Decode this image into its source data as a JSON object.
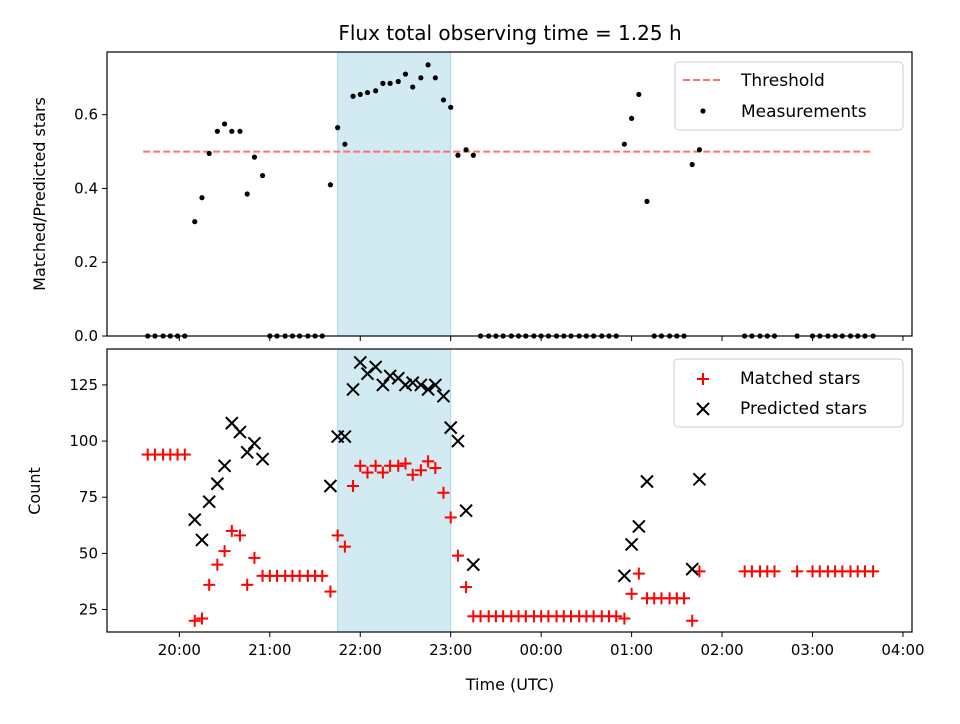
{
  "title": "Flux total observing time = 1.25 h",
  "chart_data": [
    {
      "type": "scatter",
      "ylabel": "Matched/Predicted stars",
      "xlim": [
        19.2,
        28.1
      ],
      "ylim": [
        0,
        0.77
      ],
      "yticks": [
        0.0,
        0.2,
        0.4,
        0.6
      ],
      "ytick_labels": [
        "0.0",
        "0.2",
        "0.4",
        "0.6"
      ],
      "shaded_span": {
        "x0": 21.75,
        "x1": 23.0,
        "color": "#add8e6"
      },
      "threshold": {
        "name": "Threshold",
        "y": 0.5,
        "x0": 19.6,
        "x1": 27.65,
        "color": "#ff7070"
      },
      "legend": [
        {
          "label": "Threshold",
          "kind": "dashed-line"
        },
        {
          "label": "Measurements",
          "kind": "dot"
        }
      ],
      "legend_position": "top-right",
      "series": [
        {
          "name": "Measurements",
          "color": "#000000",
          "marker": "dot",
          "x": [
            19.65,
            19.73,
            19.82,
            19.9,
            19.98,
            20.06,
            20.17,
            20.25,
            20.33,
            20.42,
            20.5,
            20.58,
            20.67,
            20.75,
            20.83,
            20.92,
            21.0,
            21.08,
            21.17,
            21.25,
            21.33,
            21.42,
            21.5,
            21.58,
            21.67,
            21.75,
            21.83,
            21.92,
            22.0,
            22.08,
            22.17,
            22.25,
            22.33,
            22.42,
            22.5,
            22.58,
            22.67,
            22.75,
            22.83,
            22.92,
            23.0,
            23.08,
            23.17,
            23.25,
            23.33,
            23.42,
            23.5,
            23.58,
            23.67,
            23.75,
            23.83,
            23.92,
            24.0,
            24.08,
            24.17,
            24.25,
            24.33,
            24.42,
            24.5,
            24.58,
            24.67,
            24.75,
            24.83,
            24.92,
            25.0,
            25.08,
            25.17,
            25.25,
            25.33,
            25.42,
            25.5,
            25.58,
            25.67,
            25.75,
            26.25,
            26.33,
            26.42,
            26.5,
            26.58,
            26.83,
            27.0,
            27.08,
            27.17,
            27.25,
            27.33,
            27.42,
            27.5,
            27.58,
            27.67
          ],
          "y": [
            0,
            0,
            0,
            0,
            0,
            0,
            0.31,
            0.375,
            0.495,
            0.555,
            0.575,
            0.555,
            0.555,
            0.385,
            0.485,
            0.435,
            0,
            0,
            0,
            0,
            0,
            0,
            0,
            0,
            0.41,
            0.565,
            0.52,
            0.65,
            0.655,
            0.66,
            0.665,
            0.685,
            0.685,
            0.69,
            0.71,
            0.675,
            0.7,
            0.735,
            0.7,
            0.64,
            0.62,
            0.49,
            0.505,
            0.49,
            0,
            0,
            0,
            0,
            0,
            0,
            0,
            0,
            0,
            0,
            0,
            0,
            0,
            0,
            0,
            0,
            0,
            0,
            0,
            0.52,
            0.59,
            0.655,
            0.365,
            0,
            0,
            0,
            0,
            0,
            0.465,
            0.505,
            0,
            0,
            0,
            0,
            0,
            0,
            0,
            0,
            0,
            0,
            0,
            0,
            0,
            0,
            0
          ]
        }
      ]
    },
    {
      "type": "scatter",
      "xlabel": "Time (UTC)",
      "ylabel": "Count",
      "xlim": [
        19.2,
        28.1
      ],
      "ylim": [
        15,
        141
      ],
      "xticks": [
        20,
        21,
        22,
        23,
        24,
        25,
        26,
        27,
        28
      ],
      "xtick_labels": [
        "20:00",
        "21:00",
        "22:00",
        "23:00",
        "00:00",
        "01:00",
        "02:00",
        "03:00",
        "04:00"
      ],
      "yticks": [
        25,
        50,
        75,
        100,
        125
      ],
      "ytick_labels": [
        "25",
        "50",
        "75",
        "100",
        "125"
      ],
      "shaded_span": {
        "x0": 21.75,
        "x1": 23.0,
        "color": "#add8e6"
      },
      "legend_position": "top-right",
      "series": [
        {
          "name": "Matched stars",
          "color": "#ff0000",
          "marker": "plus",
          "x": [
            19.65,
            19.73,
            19.82,
            19.9,
            19.98,
            20.06,
            20.17,
            20.25,
            20.33,
            20.42,
            20.5,
            20.58,
            20.67,
            20.75,
            20.83,
            20.92,
            21.0,
            21.08,
            21.17,
            21.25,
            21.33,
            21.42,
            21.5,
            21.58,
            21.67,
            21.75,
            21.83,
            21.92,
            22.0,
            22.08,
            22.17,
            22.25,
            22.33,
            22.42,
            22.5,
            22.58,
            22.67,
            22.75,
            22.83,
            22.92,
            23.0,
            23.08,
            23.17,
            23.25,
            23.33,
            23.42,
            23.5,
            23.58,
            23.67,
            23.75,
            23.83,
            23.92,
            24.0,
            24.08,
            24.17,
            24.25,
            24.33,
            24.42,
            24.5,
            24.58,
            24.67,
            24.75,
            24.83,
            24.92,
            25.0,
            25.08,
            25.17,
            25.25,
            25.33,
            25.42,
            25.5,
            25.58,
            25.67,
            25.75,
            26.25,
            26.33,
            26.42,
            26.5,
            26.58,
            26.83,
            27.0,
            27.08,
            27.17,
            27.25,
            27.33,
            27.42,
            27.5,
            27.58,
            27.67
          ],
          "y": [
            94,
            94,
            94,
            94,
            94,
            94,
            20,
            21,
            36,
            45,
            51,
            60,
            58,
            36,
            48,
            40,
            40,
            40,
            40,
            40,
            40,
            40,
            40,
            40,
            33,
            58,
            53,
            80,
            89,
            86,
            89,
            86,
            89,
            89,
            90,
            85,
            87,
            91,
            88,
            77,
            66,
            49,
            35,
            22,
            22,
            22,
            22,
            22,
            22,
            22,
            22,
            22,
            22,
            22,
            22,
            22,
            22,
            22,
            22,
            22,
            22,
            22,
            22,
            21,
            32,
            41,
            30,
            30,
            30,
            30,
            30,
            30,
            20,
            42,
            42,
            42,
            42,
            42,
            42,
            42,
            42,
            42,
            42,
            42,
            42,
            42,
            42,
            42,
            42
          ]
        },
        {
          "name": "Predicted stars",
          "color": "#000000",
          "marker": "x",
          "x": [
            20.17,
            20.25,
            20.33,
            20.42,
            20.5,
            20.58,
            20.67,
            20.75,
            20.83,
            20.92,
            21.67,
            21.75,
            21.83,
            21.92,
            22.0,
            22.08,
            22.17,
            22.25,
            22.33,
            22.42,
            22.5,
            22.58,
            22.67,
            22.75,
            22.83,
            22.92,
            23.0,
            23.08,
            23.17,
            23.25,
            24.92,
            25.0,
            25.08,
            25.17,
            25.67,
            25.75
          ],
          "y": [
            65,
            56,
            73,
            81,
            89,
            108,
            104,
            95,
            99,
            92,
            80,
            102,
            102,
            123,
            135,
            130,
            133,
            125,
            129,
            128,
            125,
            126,
            125,
            123,
            125,
            120,
            106,
            100,
            69,
            45,
            40,
            54,
            62,
            82,
            43,
            83
          ]
        }
      ]
    }
  ]
}
